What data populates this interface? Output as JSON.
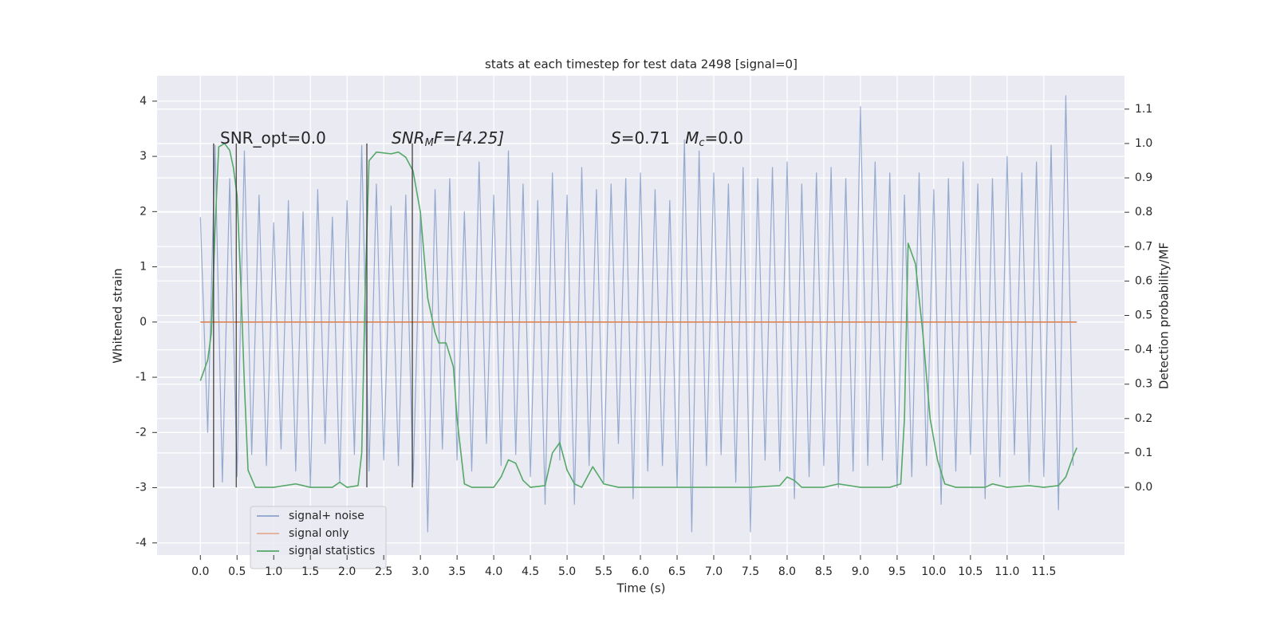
{
  "chart_data": {
    "type": "line",
    "title": "stats at each timestep for test data 2498 [signal=0]",
    "xlabel": "Time (s)",
    "ylabel": "Whitened strain",
    "y2label": "Detection probability/MF",
    "grid": true,
    "legend": "lower left",
    "xlim": [
      -0.59,
      12.6
    ],
    "ylim": [
      -4.22,
      4.46
    ],
    "y2lim": [
      -0.197,
      1.197
    ],
    "xticks": [
      {
        "value": 0,
        "label": "0.0"
      },
      {
        "value": 0.5,
        "label": "0.5"
      },
      {
        "value": 1,
        "label": "1.0"
      },
      {
        "value": 1.5,
        "label": "1.5"
      },
      {
        "value": 2,
        "label": "2.0"
      },
      {
        "value": 2.5,
        "label": "2.5"
      },
      {
        "value": 3,
        "label": "3.0"
      },
      {
        "value": 3.5,
        "label": "3.5"
      },
      {
        "value": 4,
        "label": "4.0"
      },
      {
        "value": 4.5,
        "label": "4.5"
      },
      {
        "value": 5,
        "label": "5.0"
      },
      {
        "value": 5.5,
        "label": "5.5"
      },
      {
        "value": 6,
        "label": "6.0"
      },
      {
        "value": 6.5,
        "label": "6.5"
      },
      {
        "value": 7,
        "label": "7.0"
      },
      {
        "value": 7.5,
        "label": "7.5"
      },
      {
        "value": 8,
        "label": "8.0"
      },
      {
        "value": 8.5,
        "label": "8.5"
      },
      {
        "value": 9,
        "label": "9.0"
      },
      {
        "value": 9.5,
        "label": "9.5"
      },
      {
        "value": 10,
        "label": "10.0"
      },
      {
        "value": 10.5,
        "label": "10.5"
      },
      {
        "value": 11,
        "label": "11.0"
      },
      {
        "value": 11.5,
        "label": "11.5"
      }
    ],
    "yticks": [
      -4,
      -3,
      -2,
      -1,
      0,
      1,
      2,
      3,
      4
    ],
    "y2ticks": [
      {
        "value": 0,
        "label": "0.0"
      },
      {
        "value": 0.1,
        "label": "0.1"
      },
      {
        "value": 0.2,
        "label": "0.2"
      },
      {
        "value": 0.3,
        "label": "0.3"
      },
      {
        "value": 0.4,
        "label": "0.4"
      },
      {
        "value": 0.5,
        "label": "0.5"
      },
      {
        "value": 0.6,
        "label": "0.6"
      },
      {
        "value": 0.7,
        "label": "0.7"
      },
      {
        "value": 0.8,
        "label": "0.8"
      },
      {
        "value": 0.9,
        "label": "0.9"
      },
      {
        "value": 1.0,
        "label": "1.0"
      },
      {
        "value": 1.1,
        "label": "1.1"
      }
    ],
    "series": [
      {
        "name": "signal+ noise",
        "color": "#4c72b0",
        "x": [
          0.0,
          0.1,
          0.2,
          0.3,
          0.4,
          0.5,
          0.6,
          0.7,
          0.8,
          0.9,
          1.0,
          1.1,
          1.2,
          1.3,
          1.4,
          1.5,
          1.6,
          1.7,
          1.8,
          1.9,
          2.0,
          2.1,
          2.2,
          2.3,
          2.4,
          2.5,
          2.6,
          2.7,
          2.8,
          2.9,
          3.0,
          3.1,
          3.2,
          3.3,
          3.4,
          3.5,
          3.6,
          3.7,
          3.8,
          3.9,
          4.0,
          4.1,
          4.2,
          4.3,
          4.4,
          4.5,
          4.6,
          4.7,
          4.8,
          4.9,
          5.0,
          5.1,
          5.2,
          5.3,
          5.4,
          5.5,
          5.6,
          5.7,
          5.8,
          5.9,
          6.0,
          6.1,
          6.2,
          6.3,
          6.4,
          6.5,
          6.6,
          6.7,
          6.8,
          6.9,
          7.0,
          7.1,
          7.2,
          7.3,
          7.4,
          7.5,
          7.6,
          7.7,
          7.8,
          7.9,
          8.0,
          8.1,
          8.2,
          8.3,
          8.4,
          8.5,
          8.6,
          8.7,
          8.8,
          8.9,
          9.0,
          9.1,
          9.2,
          9.3,
          9.4,
          9.5,
          9.6,
          9.7,
          9.8,
          9.9,
          10.0,
          10.1,
          10.2,
          10.3,
          10.4,
          10.5,
          10.6,
          10.7,
          10.8,
          10.9,
          11.0,
          11.1,
          11.2,
          11.3,
          11.4,
          11.5,
          11.6,
          11.7,
          11.8,
          11.9
        ],
        "values": [
          1.9,
          -2.0,
          3.2,
          -2.9,
          2.6,
          -2.8,
          3.1,
          -2.4,
          2.3,
          -2.6,
          1.8,
          -2.3,
          2.2,
          -2.7,
          2.0,
          -3.0,
          2.4,
          -2.2,
          1.9,
          -2.9,
          2.2,
          -2.4,
          3.2,
          -2.7,
          2.5,
          -2.5,
          2.1,
          -2.6,
          2.3,
          -2.9,
          2.0,
          -3.8,
          2.4,
          -2.3,
          2.6,
          -2.5,
          2.0,
          -2.7,
          2.9,
          -2.2,
          2.3,
          -2.6,
          3.1,
          -2.4,
          2.5,
          -2.8,
          2.2,
          -3.3,
          2.7,
          -2.5,
          2.3,
          -3.3,
          2.8,
          -2.6,
          2.4,
          -2.9,
          2.5,
          -2.2,
          2.6,
          -3.2,
          2.7,
          -2.7,
          2.4,
          -2.6,
          2.2,
          -3.0,
          3.3,
          -3.8,
          3.1,
          -2.6,
          2.7,
          -2.4,
          2.5,
          -2.9,
          2.8,
          -3.8,
          2.6,
          -2.5,
          2.8,
          -2.7,
          2.9,
          -3.2,
          2.5,
          -2.8,
          2.7,
          -2.6,
          2.8,
          -3.0,
          2.6,
          -2.7,
          3.9,
          -2.6,
          2.9,
          -2.5,
          2.7,
          -3.0,
          2.3,
          -2.8,
          2.7,
          -2.6,
          2.4,
          -3.3,
          2.6,
          -2.7,
          2.9,
          -2.4,
          2.5,
          -3.2,
          2.6,
          -2.8,
          3.0,
          -2.4,
          2.7,
          -2.9,
          2.9,
          -2.8,
          3.2,
          -3.4,
          4.1,
          -2.6
        ]
      },
      {
        "name": "signal only",
        "color": "#dd8452",
        "x": [
          0.0,
          11.95
        ],
        "values": [
          0,
          0
        ]
      },
      {
        "name": "signal statistics",
        "color": "#55a868",
        "axis": "y2",
        "x": [
          0.0,
          0.1,
          0.15,
          0.2,
          0.25,
          0.33,
          0.4,
          0.45,
          0.5,
          0.55,
          0.6,
          0.65,
          0.75,
          1.0,
          1.3,
          1.5,
          1.8,
          1.9,
          2.0,
          2.15,
          2.2,
          2.25,
          2.3,
          2.4,
          2.6,
          2.7,
          2.8,
          2.9,
          3.0,
          3.1,
          3.2,
          3.25,
          3.35,
          3.45,
          3.5,
          3.6,
          3.7,
          4.0,
          4.1,
          4.2,
          4.3,
          4.4,
          4.5,
          4.7,
          4.8,
          4.9,
          5.0,
          5.1,
          5.2,
          5.3,
          5.35,
          5.5,
          5.7,
          6.5,
          7.5,
          7.9,
          8.0,
          8.1,
          8.2,
          8.5,
          8.7,
          9.0,
          9.4,
          9.55,
          9.6,
          9.65,
          9.75,
          9.85,
          9.95,
          10.05,
          10.15,
          10.3,
          10.7,
          10.8,
          11.0,
          11.3,
          11.5,
          11.7,
          11.8,
          11.9,
          11.95
        ],
        "values": [
          0.31,
          0.37,
          0.45,
          0.75,
          0.99,
          1.0,
          0.98,
          0.93,
          0.85,
          0.6,
          0.3,
          0.05,
          0.0,
          0.0,
          0.01,
          0.0,
          0.0,
          0.015,
          0.0,
          0.005,
          0.1,
          0.6,
          0.95,
          0.975,
          0.97,
          0.975,
          0.96,
          0.92,
          0.8,
          0.55,
          0.45,
          0.42,
          0.42,
          0.35,
          0.2,
          0.01,
          0.0,
          0.0,
          0.03,
          0.08,
          0.07,
          0.02,
          0.0,
          0.005,
          0.1,
          0.13,
          0.05,
          0.01,
          0.0,
          0.04,
          0.06,
          0.01,
          0.0,
          0.0,
          0.0,
          0.005,
          0.03,
          0.02,
          0.0,
          0.0,
          0.01,
          0.0,
          0.0,
          0.01,
          0.2,
          0.71,
          0.65,
          0.45,
          0.2,
          0.08,
          0.01,
          0.0,
          0.0,
          0.01,
          0.0,
          0.005,
          0.0,
          0.005,
          0.03,
          0.09,
          0.115
        ]
      }
    ],
    "vlines": {
      "color": "#333333",
      "x": [
        0.18,
        0.49,
        2.27,
        2.89
      ],
      "y2range": [
        0,
        1.0
      ]
    },
    "annotations": [
      {
        "parts": [
          {
            "text": "SNR_opt=0.0",
            "style": "normal"
          }
        ]
      },
      {
        "parts": [
          {
            "text": "SNR",
            "style": "italic"
          },
          {
            "text": "M",
            "style": "sub"
          },
          {
            "text": "F=[4.25]",
            "style": "normal"
          }
        ]
      },
      {
        "parts": [
          {
            "text": "S",
            "style": "italic"
          },
          {
            "text": "=0.71   ",
            "style": "normal"
          },
          {
            "text": "M",
            "style": "italic"
          },
          {
            "text": "c",
            "style": "sub"
          },
          {
            "text": "=0.0",
            "style": "normal"
          }
        ]
      }
    ]
  }
}
